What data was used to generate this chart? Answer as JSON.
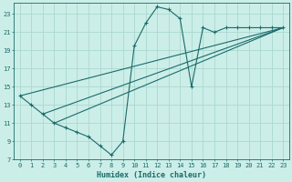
{
  "xlabel": "Humidex (Indice chaleur)",
  "bg_color": "#cceee8",
  "grid_color": "#aad8d0",
  "line_color": "#1a6b6b",
  "xlim": [
    -0.5,
    23.5
  ],
  "ylim": [
    7,
    24.2
  ],
  "xticks": [
    0,
    1,
    2,
    3,
    4,
    5,
    6,
    7,
    8,
    9,
    10,
    11,
    12,
    13,
    14,
    15,
    16,
    17,
    18,
    19,
    20,
    21,
    22,
    23
  ],
  "yticks": [
    7,
    9,
    11,
    13,
    15,
    17,
    19,
    21,
    23
  ],
  "curve_x": [
    0,
    1,
    2,
    3,
    4,
    5,
    6,
    7,
    8,
    9,
    10,
    11,
    12,
    13,
    14,
    15,
    16,
    17,
    18,
    19,
    20,
    21,
    22,
    23
  ],
  "curve_y": [
    14.0,
    13.0,
    12.0,
    11.0,
    10.5,
    10.0,
    9.5,
    8.5,
    7.5,
    9.0,
    19.5,
    22.0,
    23.8,
    23.5,
    22.5,
    15.0,
    21.5,
    21.0,
    21.5,
    21.5,
    21.5,
    21.5,
    21.5,
    21.5
  ],
  "straight_lines": [
    {
      "x": [
        0,
        23
      ],
      "y": [
        14.0,
        21.5
      ]
    },
    {
      "x": [
        2,
        23
      ],
      "y": [
        12.0,
        21.5
      ]
    },
    {
      "x": [
        3,
        23
      ],
      "y": [
        11.0,
        21.5
      ]
    }
  ]
}
